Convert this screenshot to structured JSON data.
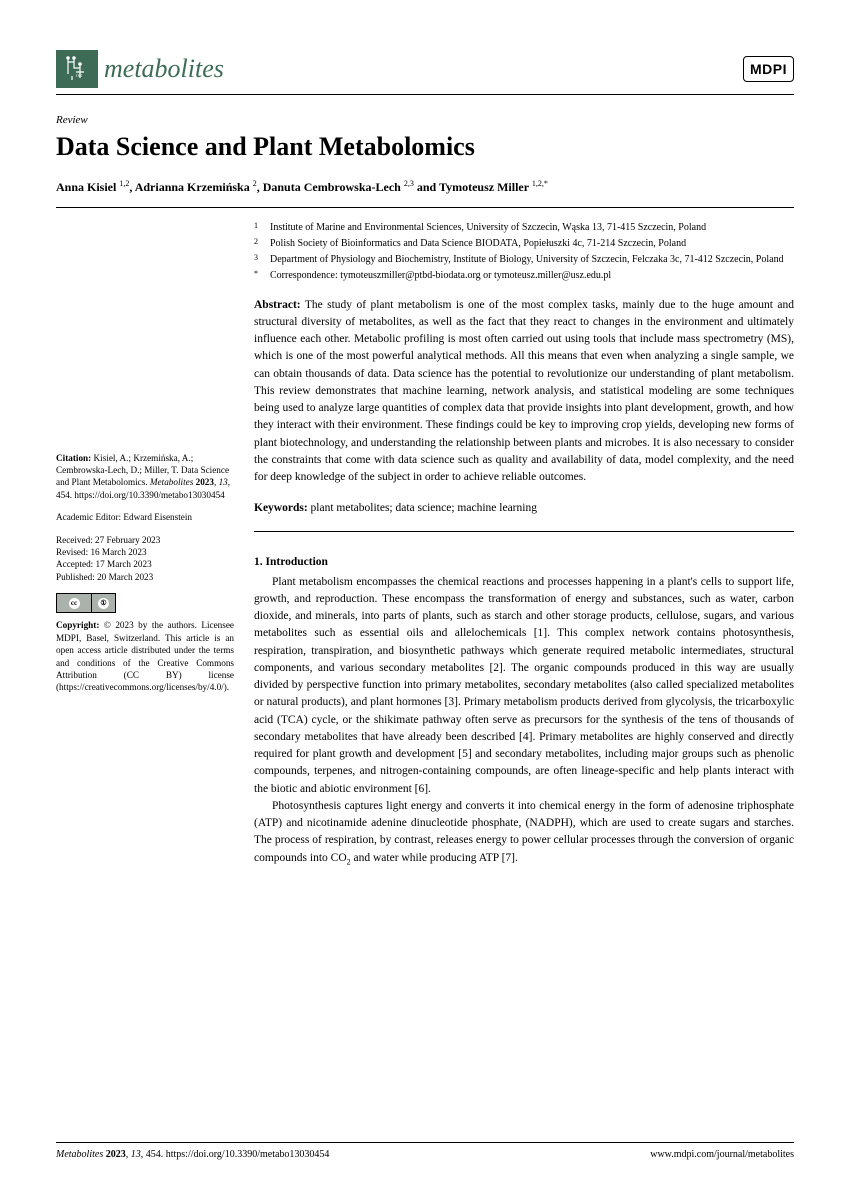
{
  "journal": {
    "name": "metabolites",
    "publisher_badge": "MDPI",
    "logo_color": "#3d6b56"
  },
  "article": {
    "type": "Review",
    "title": "Data Science and Plant Metabolomics",
    "authors_html": "Anna Kisiel <sup>1,2</sup>, Adrianna Krzemińska <sup>2</sup>, Danuta Cembrowska-Lech <sup>2,3</sup> and Tymoteusz Miller <sup>1,2,*</sup>"
  },
  "affiliations": [
    {
      "marker": "1",
      "text": "Institute of Marine and Environmental Sciences, University of Szczecin, Wąska 13, 71-415 Szczecin, Poland"
    },
    {
      "marker": "2",
      "text": "Polish Society of Bioinformatics and Data Science BIODATA, Popiełuszki 4c, 71-214 Szczecin, Poland"
    },
    {
      "marker": "3",
      "text": "Department of Physiology and Biochemistry, Institute of Biology, University of Szczecin, Felczaka 3c, 71-412 Szczecin, Poland"
    },
    {
      "marker": "*",
      "text": "Correspondence: tymoteuszmiller@ptbd-biodata.org or tymoteusz.miller@usz.edu.pl"
    }
  ],
  "abstract": {
    "label": "Abstract:",
    "text": "The study of plant metabolism is one of the most complex tasks, mainly due to the huge amount and structural diversity of metabolites, as well as the fact that they react to changes in the environment and ultimately influence each other. Metabolic profiling is most often carried out using tools that include mass spectrometry (MS), which is one of the most powerful analytical methods. All this means that even when analyzing a single sample, we can obtain thousands of data. Data science has the potential to revolutionize our understanding of plant metabolism. This review demonstrates that machine learning, network analysis, and statistical modeling are some techniques being used to analyze large quantities of complex data that provide insights into plant development, growth, and how they interact with their environment. These findings could be key to improving crop yields, developing new forms of plant biotechnology, and understanding the relationship between plants and microbes. It is also necessary to consider the constraints that come with data science such as quality and availability of data, model complexity, and the need for deep knowledge of the subject in order to achieve reliable outcomes."
  },
  "keywords": {
    "label": "Keywords:",
    "text": "plant metabolites; data science; machine learning"
  },
  "section1": {
    "heading": "1. Introduction",
    "para1": "Plant metabolism encompasses the chemical reactions and processes happening in a plant's cells to support life, growth, and reproduction. These encompass the transformation of energy and substances, such as water, carbon dioxide, and minerals, into parts of plants, such as starch and other storage products, cellulose, sugars, and various metabolites such as essential oils and allelochemicals [1]. This complex network contains photosynthesis, respiration, transpiration, and biosynthetic pathways which generate required metabolic intermediates, structural components, and various secondary metabolites [2]. The organic compounds produced in this way are usually divided by perspective function into primary metabolites, secondary metabolites (also called specialized metabolites or natural products), and plant hormones [3]. Primary metabolism products derived from glycolysis, the tricarboxylic acid (TCA) cycle, or the shikimate pathway often serve as precursors for the synthesis of the tens of thousands of secondary metabolites that have already been described [4]. Primary metabolites are highly conserved and directly required for plant growth and development [5] and secondary metabolites, including major groups such as phenolic compounds, terpenes, and nitrogen-containing compounds, are often lineage-specific and help plants interact with the biotic and abiotic environment [6].",
    "para2_pre": "Photosynthesis captures light energy and converts it into chemical energy in the form of adenosine triphosphate (ATP) and nicotinamide adenine dinucleotide phosphate, (NADPH), which are used to create sugars and starches. The process of respiration, by contrast, releases energy to power cellular processes through the conversion of organic compounds into CO",
    "para2_post": " and water while producing ATP [7]."
  },
  "sidebar": {
    "citation_label": "Citation:",
    "citation_text": "Kisiel, A.; Krzemińska, A.; Cembrowska-Lech, D.; Miller, T. Data Science and Plant Metabolomics. Metabolites 2023, 13, 454. https://doi.org/10.3390/metabo13030454",
    "editor_label": "Academic Editor:",
    "editor_name": "Edward Eisenstein",
    "received": "Received: 27 February 2023",
    "revised": "Revised: 16 March 2023",
    "accepted": "Accepted: 17 March 2023",
    "published": "Published: 20 March 2023",
    "copyright_label": "Copyright:",
    "copyright_text": "© 2023 by the authors. Licensee MDPI, Basel, Switzerland. This article is an open access article distributed under the terms and conditions of the Creative Commons Attribution (CC BY) license (https://creativecommons.org/licenses/by/4.0/)."
  },
  "footer": {
    "left": "Metabolites 2023, 13, 454. https://doi.org/10.3390/metabo13030454",
    "right": "www.mdpi.com/journal/metabolites"
  }
}
